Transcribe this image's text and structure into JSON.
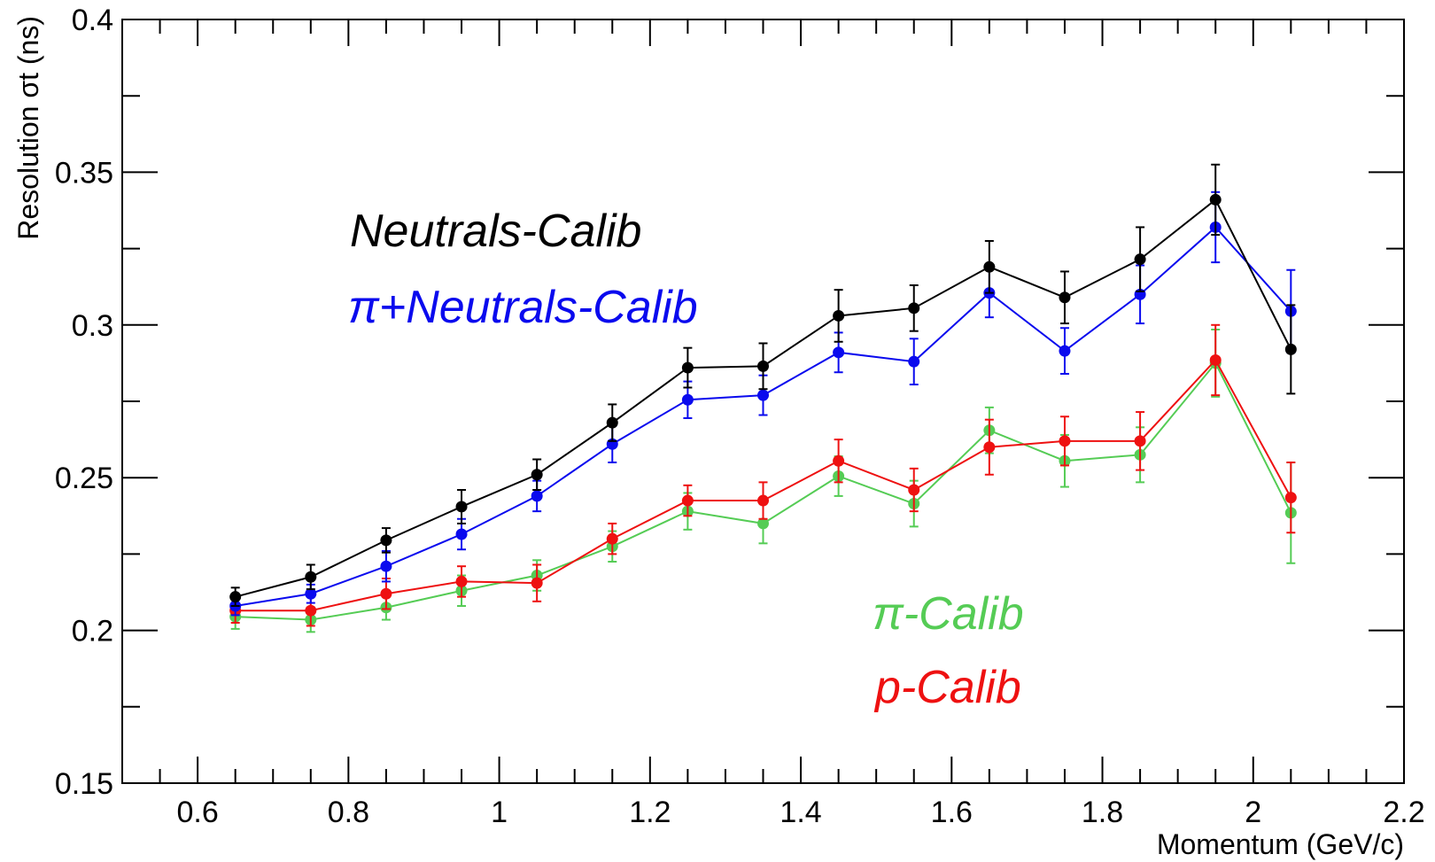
{
  "chart_data": {
    "type": "line",
    "title": "",
    "xlabel": "Momentum (GeV/c)",
    "ylabel": "Resolution σt (ns)",
    "xlim": [
      0.5,
      2.2
    ],
    "ylim": [
      0.15,
      0.4
    ],
    "xticks": [
      0.6,
      0.8,
      1,
      1.2,
      1.4,
      1.6,
      1.8,
      2,
      2.2
    ],
    "xtick_labels": [
      "0.6",
      "0.8",
      "1",
      "1.2",
      "1.4",
      "1.6",
      "1.8",
      "2",
      "2.2"
    ],
    "yticks": [
      0.15,
      0.2,
      0.25,
      0.3,
      0.35,
      0.4
    ],
    "ytick_labels": [
      "0.15",
      "0.2",
      "0.25",
      "0.3",
      "0.35",
      "0.4"
    ],
    "grid": false,
    "x": [
      0.65,
      0.75,
      0.85,
      0.95,
      1.05,
      1.15,
      1.25,
      1.35,
      1.45,
      1.55,
      1.65,
      1.75,
      1.85,
      1.95,
      2.05
    ],
    "series": [
      {
        "name": "π-Calib",
        "color": "#55cc55",
        "values": [
          0.2045,
          0.2035,
          0.2075,
          0.213,
          0.218,
          0.2275,
          0.239,
          0.235,
          0.2505,
          0.2415,
          0.2655,
          0.2555,
          0.2575,
          0.2875,
          0.2385
        ],
        "errors": [
          0.004,
          0.004,
          0.004,
          0.005,
          0.005,
          0.005,
          0.006,
          0.0065,
          0.0065,
          0.0075,
          0.0075,
          0.0085,
          0.009,
          0.011,
          0.0165
        ]
      },
      {
        "name": "p-Calib",
        "color": "#ee1111",
        "values": [
          0.2065,
          0.2065,
          0.212,
          0.216,
          0.2155,
          0.23,
          0.2425,
          0.2425,
          0.2555,
          0.246,
          0.26,
          0.262,
          0.262,
          0.2885,
          0.2435
        ],
        "errors": [
          0.004,
          0.005,
          0.005,
          0.005,
          0.006,
          0.005,
          0.005,
          0.006,
          0.007,
          0.007,
          0.009,
          0.008,
          0.0095,
          0.0115,
          0.0115
        ]
      },
      {
        "name": "π+Neutrals-Calib",
        "color": "#0a0aee",
        "values": [
          0.208,
          0.212,
          0.221,
          0.2315,
          0.244,
          0.261,
          0.2755,
          0.277,
          0.291,
          0.288,
          0.3105,
          0.2915,
          0.31,
          0.332,
          0.3045
        ],
        "errors": [
          0.003,
          0.003,
          0.005,
          0.005,
          0.005,
          0.006,
          0.006,
          0.0065,
          0.0065,
          0.0075,
          0.008,
          0.0075,
          0.0095,
          0.0115,
          0.0135
        ]
      },
      {
        "name": "Neutrals-Calib",
        "color": "#000000",
        "values": [
          0.211,
          0.2175,
          0.2295,
          0.2405,
          0.251,
          0.268,
          0.286,
          0.2865,
          0.303,
          0.3055,
          0.319,
          0.309,
          0.3215,
          0.341,
          0.292
        ],
        "errors": [
          0.003,
          0.004,
          0.004,
          0.0055,
          0.005,
          0.006,
          0.0065,
          0.0075,
          0.0085,
          0.0075,
          0.0085,
          0.0085,
          0.0105,
          0.0115,
          0.0145
        ]
      }
    ],
    "legend": [
      {
        "label": "Neutrals-Calib",
        "color": "#000000"
      },
      {
        "label": "π+Neutrals-Calib",
        "color": "#0a0aee"
      },
      {
        "label": "π-Calib",
        "color": "#55cc55"
      },
      {
        "label": "p-Calib",
        "color": "#ee1111"
      }
    ]
  }
}
